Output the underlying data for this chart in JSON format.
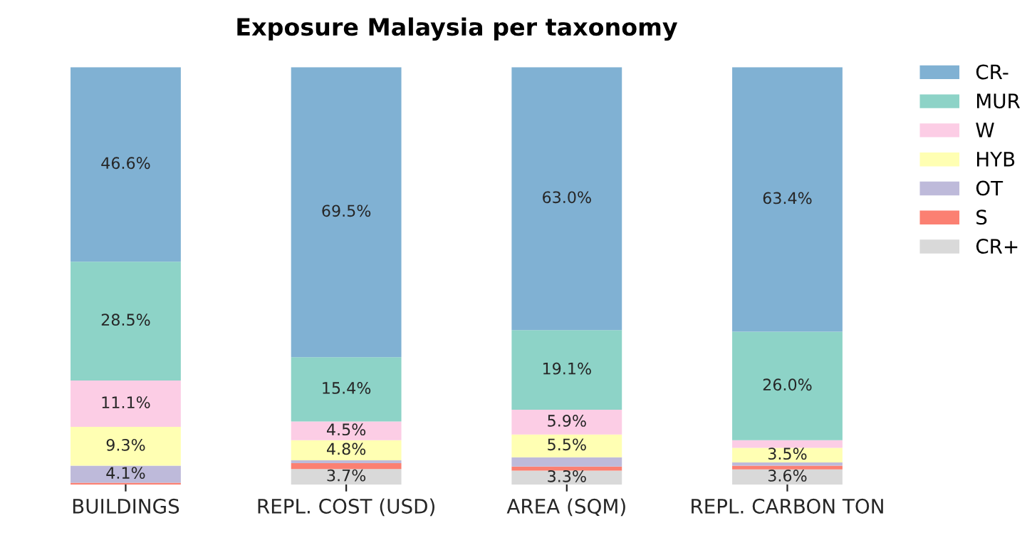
{
  "chart_data": {
    "type": "bar",
    "title": "Exposure Malaysia per taxonomy",
    "stacked": true,
    "categories": [
      "BUILDINGS",
      "REPL. COST (USD)",
      "AREA (SQM)",
      "REPL. CARBON TON"
    ],
    "series": [
      {
        "name": "CR+",
        "color": "#d9d9d9",
        "values": [
          0,
          3.7,
          3.3,
          3.6
        ],
        "value_labels": [
          null,
          "3.7%",
          "3.3%",
          "3.6%"
        ]
      },
      {
        "name": "S",
        "color": "#fb8072",
        "values": [
          0.4,
          1.4,
          1.0,
          0.9
        ],
        "value_labels": [
          null,
          null,
          null,
          null
        ]
      },
      {
        "name": "OT",
        "color": "#bebada",
        "values": [
          4.1,
          0.7,
          2.2,
          0.8
        ],
        "value_labels": [
          "4.1%",
          null,
          null,
          null
        ]
      },
      {
        "name": "HYB",
        "color": "#ffffb3",
        "values": [
          9.3,
          4.8,
          5.5,
          3.5
        ],
        "value_labels": [
          "9.3%",
          "4.8%",
          "5.5%",
          "3.5%"
        ]
      },
      {
        "name": "W",
        "color": "#fccde5",
        "values": [
          11.1,
          4.5,
          5.9,
          1.8
        ],
        "value_labels": [
          "11.1%",
          "4.5%",
          "5.9%",
          null
        ]
      },
      {
        "name": "MUR",
        "color": "#8dd3c7",
        "values": [
          28.5,
          15.4,
          19.1,
          26.0
        ],
        "value_labels": [
          "28.5%",
          "15.4%",
          "19.1%",
          "26.0%"
        ]
      },
      {
        "name": "CR-",
        "color": "#80b1d3",
        "values": [
          46.6,
          69.5,
          63.0,
          63.4
        ],
        "value_labels": [
          "46.6%",
          "69.5%",
          "63.0%",
          "63.4%"
        ]
      }
    ],
    "ylim": [
      0,
      100
    ],
    "tick_labels": "x",
    "grid": false,
    "legend": "top right"
  }
}
